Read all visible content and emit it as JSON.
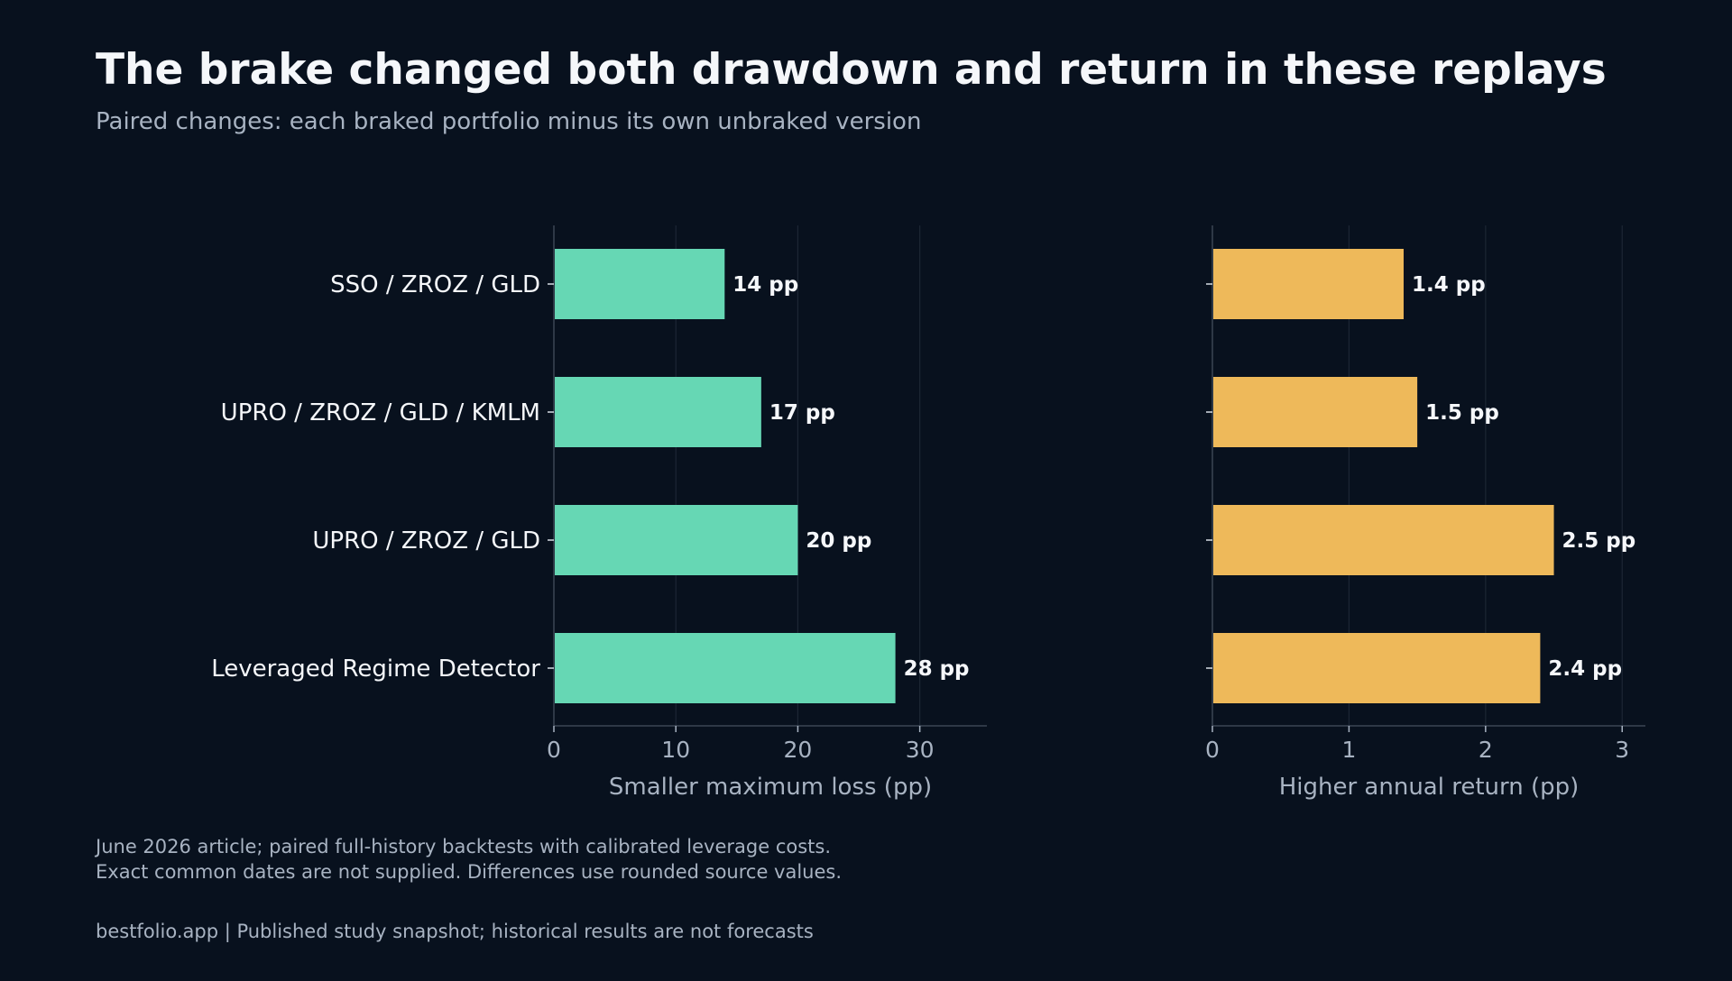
{
  "chart_data": {
    "type": "bar",
    "orientation": "horizontal",
    "title": "The brake changed both drawdown and return in these replays",
    "subtitle": "Paired changes: each braked portfolio minus its own unbraked version",
    "categories": [
      "SSO / ZROZ / GLD",
      "UPRO / ZROZ / GLD / KMLM",
      "UPRO / ZROZ / GLD",
      "Leveraged Regime Detector"
    ],
    "panels": [
      {
        "xlabel": "Smaller maximum loss (pp)",
        "values": [
          14,
          17,
          20,
          28
        ],
        "value_labels": [
          "14 pp",
          "17 pp",
          "20 pp",
          "28 pp"
        ],
        "xlim": [
          0,
          35.5
        ],
        "ticks": [
          0,
          10,
          20,
          30
        ],
        "tick_labels": [
          "0",
          "10",
          "20",
          "30"
        ],
        "color": "#66d7b4"
      },
      {
        "xlabel": "Higher annual return (pp)",
        "values": [
          1.4,
          1.5,
          2.5,
          2.4
        ],
        "value_labels": [
          "1.4 pp",
          "1.5 pp",
          "2.5 pp",
          "2.4 pp"
        ],
        "xlim": [
          0,
          3.17
        ],
        "ticks": [
          0,
          1,
          2,
          3
        ],
        "tick_labels": [
          "0",
          "1",
          "2",
          "3"
        ],
        "color": "#eeb95a"
      }
    ],
    "grid": "vertical",
    "legend": "none"
  },
  "notes": {
    "line1": "June 2026 article; paired full-history backtests with calibrated leverage costs.",
    "line2": "Exact common dates are not supplied. Differences use rounded source values."
  },
  "footer": "bestfolio.app  |  Published study snapshot; historical results are not forecasts",
  "colors": {
    "background": "#08111e",
    "text": "#f5f7fa",
    "muted_text": "#a8b3c2",
    "grid": "#1c2634",
    "axis": "#3a4554"
  }
}
